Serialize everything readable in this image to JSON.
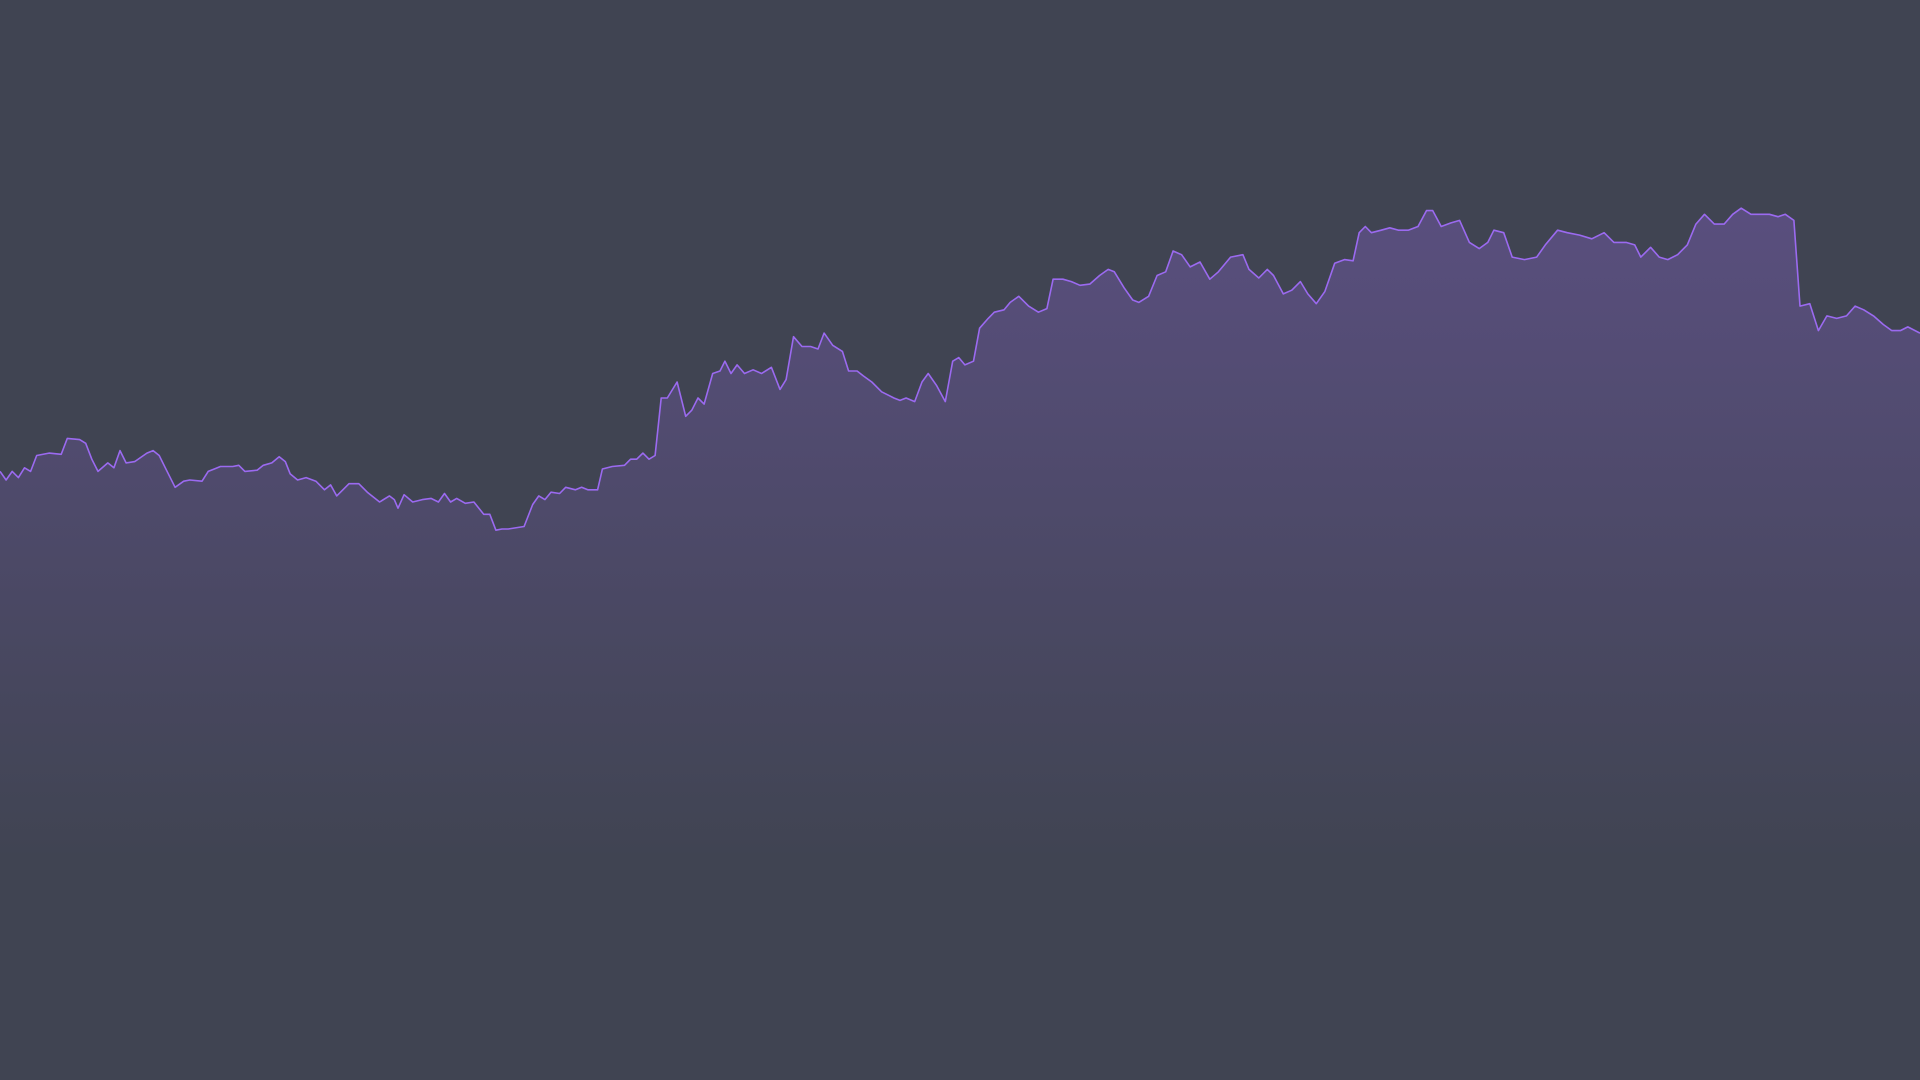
{
  "chart_data": {
    "type": "area",
    "background": "#404452",
    "xlim": [
      0,
      1568
    ],
    "ylim": [
      0,
      882
    ],
    "x": [
      0,
      5,
      10,
      15,
      20,
      25,
      30,
      40,
      50,
      55,
      65,
      70,
      75,
      80,
      88,
      93,
      98,
      103,
      110,
      120,
      125,
      130,
      135,
      143,
      150,
      155,
      165,
      170,
      175,
      180,
      190,
      195,
      200,
      210,
      215,
      222,
      228,
      233,
      237,
      243,
      250,
      258,
      265,
      270,
      275,
      280,
      285,
      293,
      300,
      310,
      318,
      322,
      325,
      330,
      337,
      345,
      352,
      358,
      363,
      368,
      373,
      380,
      387,
      395,
      400,
      405,
      410,
      415,
      428,
      435,
      440,
      445,
      450,
      457,
      462,
      470,
      475,
      480,
      488,
      492,
      500,
      510,
      515,
      520,
      525,
      530,
      535,
      540,
      545,
      553,
      560,
      565,
      570,
      575,
      582,
      588,
      592,
      597,
      602,
      608,
      615,
      622,
      630,
      637,
      642,
      648,
      655,
      662,
      668,
      673,
      680,
      688,
      693,
      700,
      705,
      712,
      720,
      730,
      735,
      740,
      747,
      753,
      758,
      765,
      772,
      778,
      783,
      788,
      795,
      800,
      807,
      812,
      820,
      825,
      832,
      840,
      848,
      855,
      860,
      868,
      875,
      882,
      890,
      898,
      905,
      910,
      918,
      925,
      930,
      938,
      945,
      952,
      958,
      965,
      972,
      980,
      988,
      995,
      1005,
      1015,
      1020,
      1028,
      1035,
      1040,
      1048,
      1055,
      1062,
      1068,
      1075,
      1082,
      1090,
      1098,
      1105,
      1110,
      1115,
      1120,
      1128,
      1135,
      1142,
      1150,
      1158,
      1165,
      1170,
      1177,
      1185,
      1192,
      1200,
      1208,
      1215,
      1220,
      1228,
      1235,
      1245,
      1255,
      1262,
      1272,
      1280,
      1290,
      1300,
      1310,
      1318,
      1328,
      1335,
      1340,
      1348,
      1355,
      1362,
      1370,
      1378,
      1385,
      1392,
      1400,
      1408,
      1415,
      1422,
      1430,
      1438,
      1445,
      1452,
      1458,
      1465,
      1470,
      1478,
      1485,
      1492,
      1500,
      1508,
      1515,
      1522,
      1530,
      1538,
      1545,
      1552,
      1558,
      1568
    ],
    "series": [
      {
        "color": "#9b6af0",
        "values": [
          497,
          490,
          497,
          492,
          500,
          497,
          510,
          512,
          511,
          524,
          523,
          520,
          507,
          497,
          504,
          500,
          514,
          504,
          505,
          512,
          514,
          510,
          500,
          484,
          489,
          490,
          489,
          497,
          499,
          501,
          501,
          502,
          497,
          498,
          502,
          504,
          509,
          505,
          495,
          490,
          492,
          489,
          482,
          486,
          477,
          482,
          487,
          487,
          480,
          472,
          477,
          474,
          467,
          478,
          472,
          474,
          475,
          472,
          479,
          472,
          475,
          471,
          472,
          462,
          462,
          449,
          450,
          450,
          452,
          470,
          477,
          474,
          480,
          479,
          484,
          482,
          484,
          482,
          482,
          499,
          501,
          502,
          507,
          507,
          512,
          507,
          510,
          557,
          557,
          570,
          542,
          547,
          557,
          552,
          577,
          579,
          587,
          577,
          584,
          577,
          580,
          577,
          582,
          564,
          572,
          607,
          599,
          599,
          597,
          610,
          600,
          595,
          579,
          579,
          575,
          570,
          562,
          557,
          555,
          557,
          554,
          570,
          577,
          567,
          554,
          587,
          590,
          584,
          587,
          614,
          622,
          627,
          629,
          635,
          640,
          632,
          627,
          630,
          654,
          654,
          652,
          649,
          650,
          657,
          662,
          660,
          647,
          637,
          635,
          640,
          657,
          660,
          677,
          674,
          664,
          668,
          654,
          660,
          672,
          674,
          662,
          655,
          662,
          657,
          642,
          645,
          652,
          642,
          634,
          644,
          667,
          670,
          669,
          692,
          697,
          692,
          694,
          696,
          694,
          694,
          697,
          710,
          710,
          697,
          700,
          702,
          684,
          679,
          684,
          694,
          692,
          672,
          670,
          672,
          682,
          694,
          692,
          690,
          687,
          692,
          684,
          684,
          682,
          672,
          680,
          672,
          670,
          674,
          682,
          699,
          707,
          699,
          699,
          707,
          712,
          707,
          707,
          707,
          705,
          707,
          702,
          632,
          634,
          612,
          624,
          622,
          624,
          632,
          629,
          624,
          617,
          612,
          612,
          615,
          610
        ]
      }
    ]
  }
}
